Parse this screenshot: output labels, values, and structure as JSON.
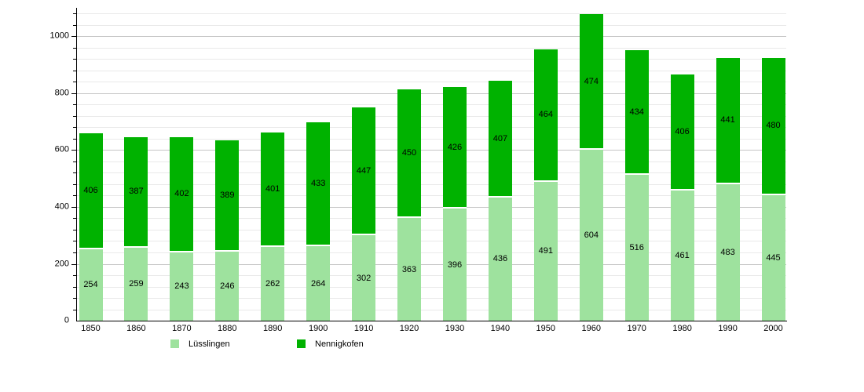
{
  "chart_data": {
    "type": "bar",
    "stacked": true,
    "title": "",
    "xlabel": "",
    "ylabel": "",
    "categories": [
      "1850",
      "1860",
      "1870",
      "1880",
      "1890",
      "1900",
      "1910",
      "1920",
      "1930",
      "1940",
      "1950",
      "1960",
      "1970",
      "1980",
      "1990",
      "2000"
    ],
    "series": [
      {
        "name": "Lüsslingen",
        "color": "#9ee29e",
        "values": [
          254,
          259,
          243,
          246,
          262,
          264,
          302,
          363,
          396,
          436,
          491,
          604,
          516,
          461,
          483,
          445
        ]
      },
      {
        "name": "Nennigkofen",
        "color": "#00b200",
        "values": [
          406,
          387,
          402,
          389,
          401,
          433,
          447,
          450,
          426,
          407,
          464,
          474,
          434,
          406,
          441,
          480
        ]
      }
    ],
    "totals": [
      660,
      646,
      645,
      635,
      663,
      697,
      749,
      813,
      822,
      843,
      955,
      1078,
      950,
      867,
      924,
      925
    ],
    "ylim": [
      0,
      1100
    ],
    "ytick_major": 200,
    "ytick_minor": 40,
    "y_tick_labels": [
      "0",
      "200",
      "400",
      "600",
      "800",
      "1000"
    ],
    "grid": true,
    "bar_value_labels": true,
    "legend_position": "bottom"
  },
  "colors": {
    "background": "#ffffff",
    "axis": "#000000",
    "grid_minor": "#e9e9e9",
    "grid_major": "#c6c6c6",
    "text": "#000000"
  }
}
